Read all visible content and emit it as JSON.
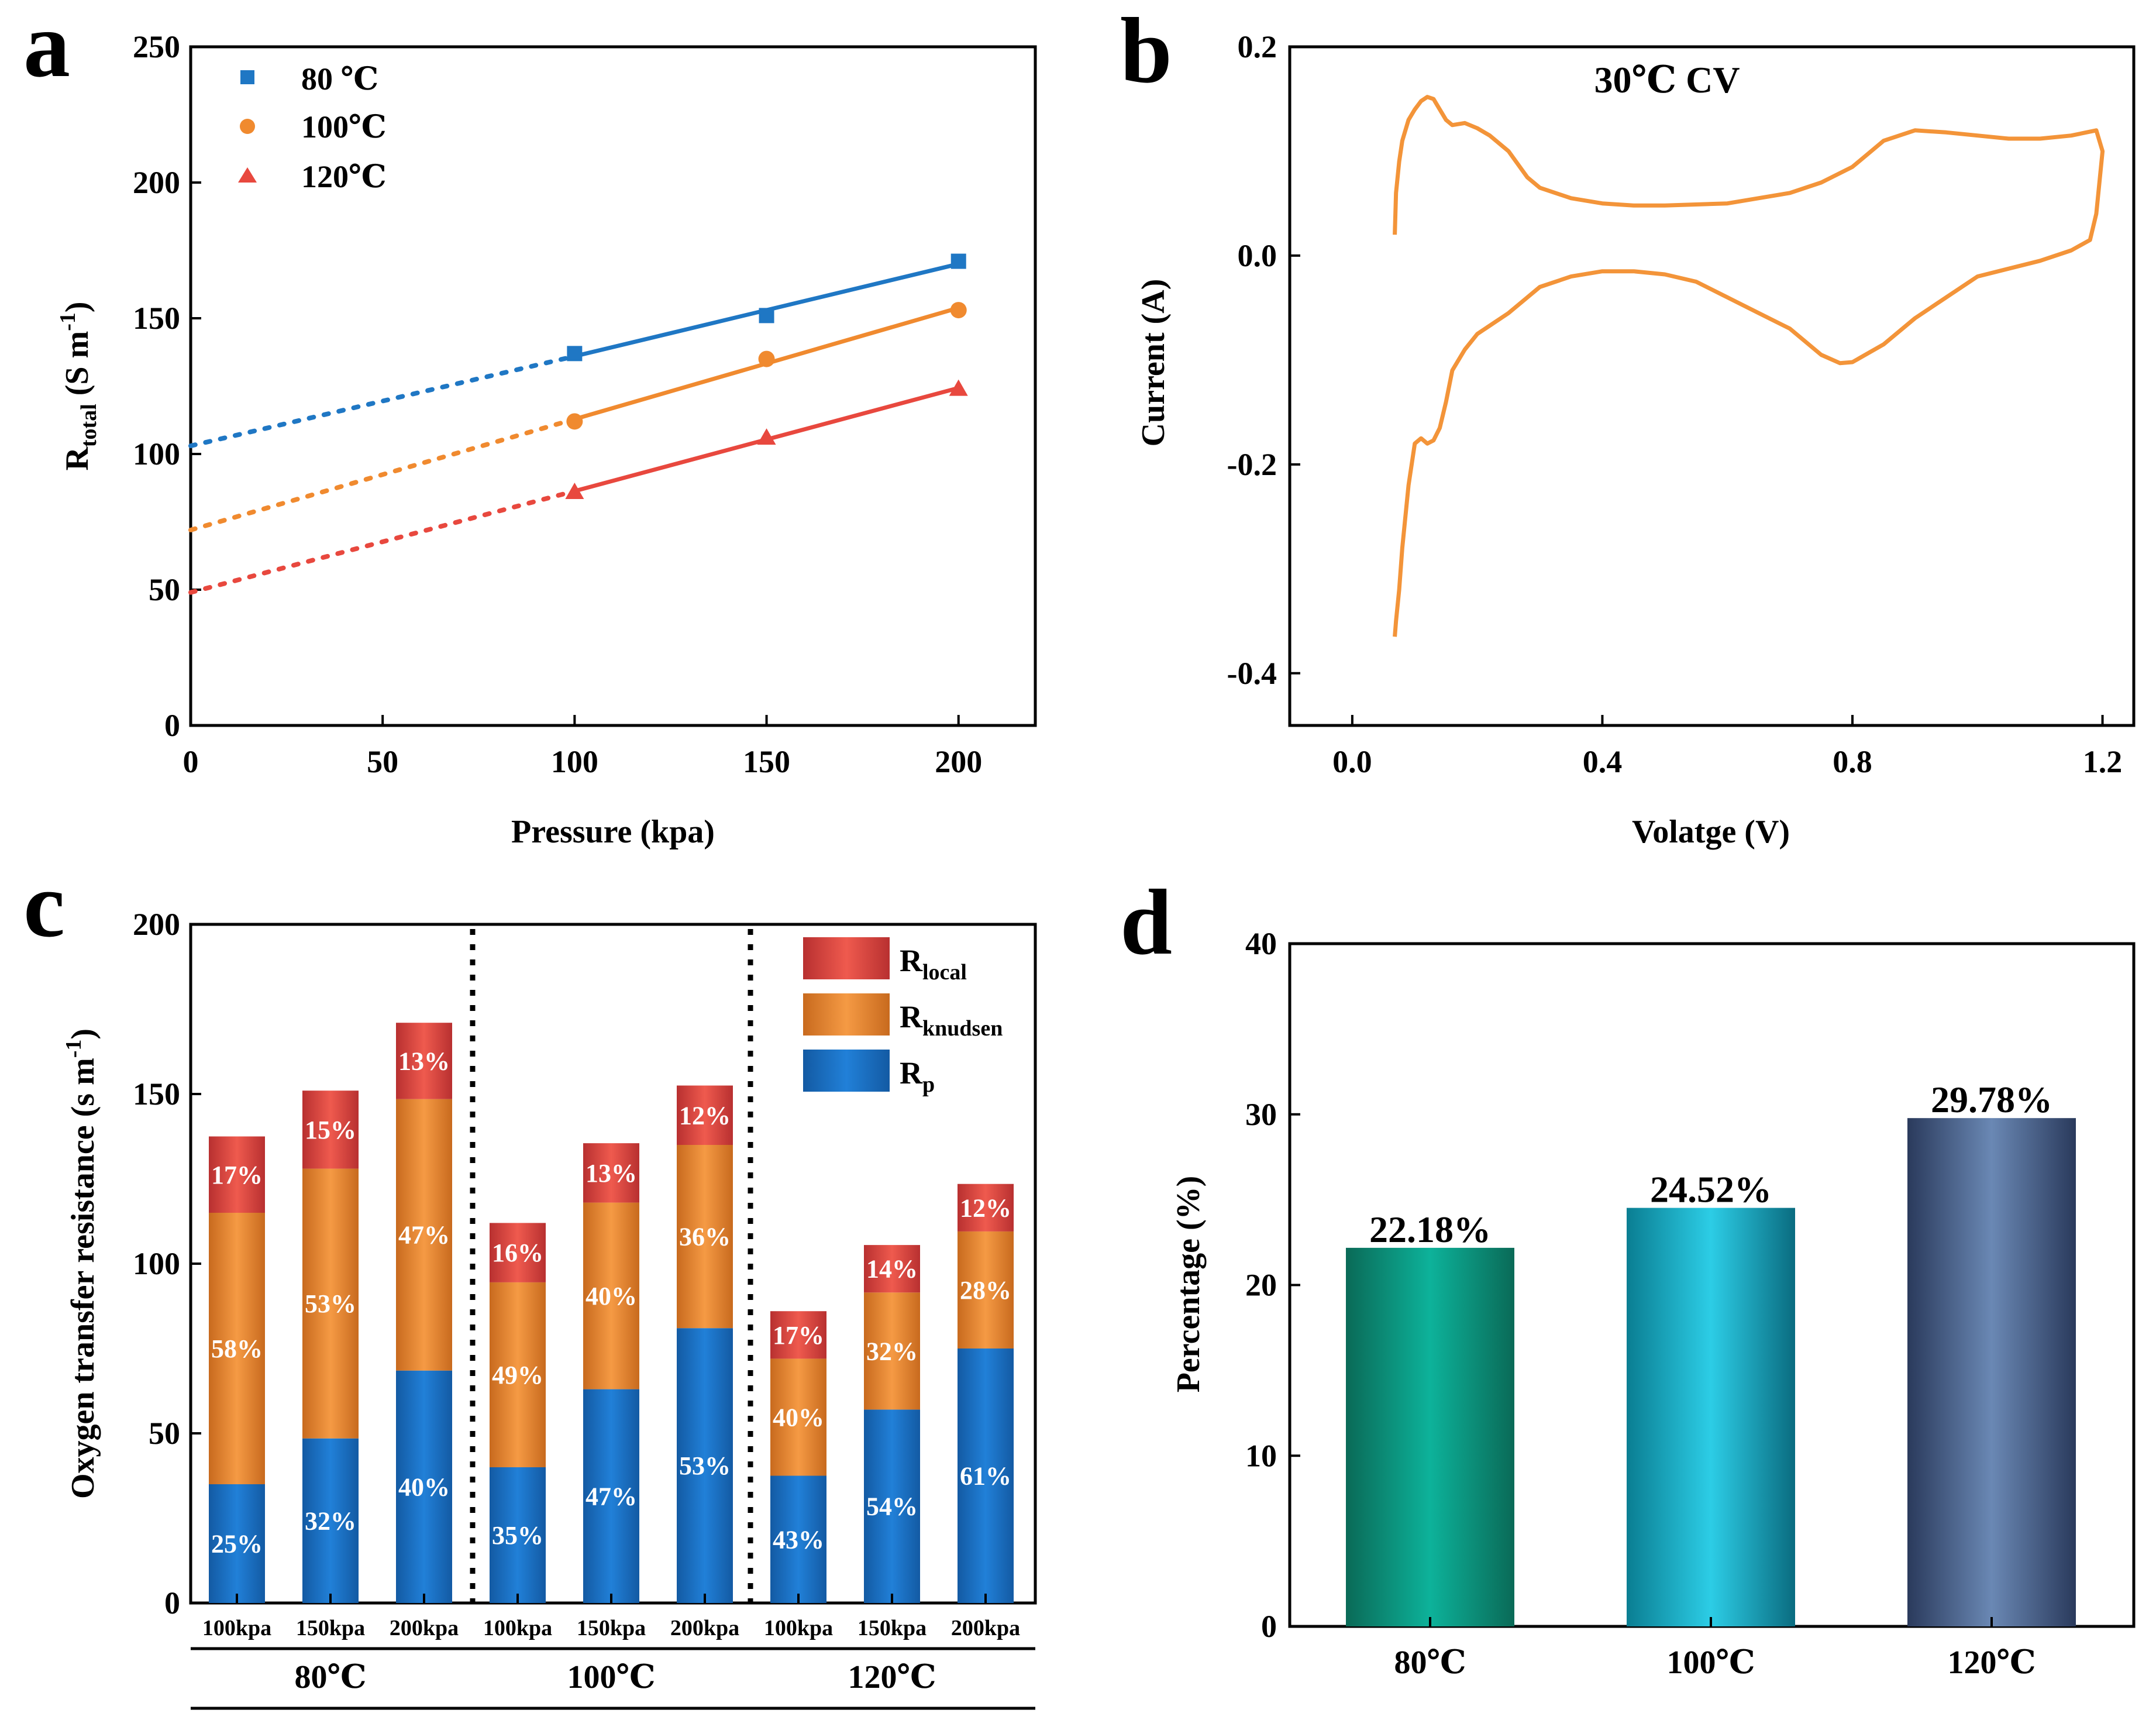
{
  "panels": {
    "a": "a",
    "b": "b",
    "c": "c",
    "d": "d"
  },
  "colors": {
    "c80": "#1f77c4",
    "c100": "#f08a2f",
    "c120": "#e8483e",
    "r_local": "#d93a3a",
    "r_knudsen": "#f08a30",
    "r_p": "#1a6fc2",
    "cv": "#f39439"
  },
  "chart_data": [
    {
      "panel": "a",
      "type": "scatter",
      "xlabel": "Pressure (kpa)",
      "ylabel": {
        "main": "R",
        "sub": "total",
        "unit": " (S m",
        "exp": "-1",
        "close": ")"
      },
      "xlim": [
        0,
        220
      ],
      "ylim": [
        0,
        250
      ],
      "xticks": [
        0,
        50,
        100,
        150,
        200
      ],
      "yticks": [
        0,
        50,
        100,
        150,
        200,
        250
      ],
      "series": [
        {
          "name": "80 ℃",
          "marker": "square",
          "color_key": "c80",
          "x": [
            100,
            150,
            200
          ],
          "y": [
            137,
            151,
            171
          ],
          "intercept": 103
        },
        {
          "name": "100℃",
          "marker": "circle",
          "color_key": "c100",
          "x": [
            100,
            150,
            200
          ],
          "y": [
            112,
            135,
            153
          ],
          "intercept": 72
        },
        {
          "name": "120℃",
          "marker": "triangle",
          "color_key": "c120",
          "x": [
            100,
            150,
            200
          ],
          "y": [
            86,
            106,
            124
          ],
          "intercept": 49
        }
      ]
    },
    {
      "panel": "b",
      "type": "line",
      "title": "30℃ CV",
      "xlabel": "Volatge (V)",
      "ylabel": "Current (A)",
      "xlim": [
        -0.1,
        1.25
      ],
      "ylim": [
        -0.45,
        0.2
      ],
      "xticks": [
        0.0,
        0.4,
        0.8,
        1.2
      ],
      "yticks": [
        -0.4,
        -0.2,
        0.0,
        0.2
      ],
      "x": [
        0.068,
        0.07,
        0.075,
        0.08,
        0.09,
        0.1,
        0.11,
        0.12,
        0.13,
        0.14,
        0.15,
        0.16,
        0.18,
        0.2,
        0.22,
        0.25,
        0.28,
        0.3,
        0.35,
        0.4,
        0.45,
        0.5,
        0.6,
        0.7,
        0.75,
        0.8,
        0.85,
        0.9,
        0.95,
        1.0,
        1.05,
        1.1,
        1.15,
        1.19,
        1.2,
        1.19,
        1.18,
        1.15,
        1.1,
        1.0,
        0.95,
        0.9,
        0.85,
        0.8,
        0.78,
        0.75,
        0.7,
        0.65,
        0.6,
        0.55,
        0.5,
        0.45,
        0.4,
        0.35,
        0.3,
        0.25,
        0.2,
        0.18,
        0.16,
        0.15,
        0.14,
        0.13,
        0.12,
        0.11,
        0.1,
        0.09,
        0.08,
        0.075,
        0.07,
        0.068
      ],
      "y": [
        0.02,
        0.06,
        0.09,
        0.11,
        0.13,
        0.14,
        0.148,
        0.152,
        0.15,
        0.14,
        0.13,
        0.125,
        0.127,
        0.122,
        0.115,
        0.1,
        0.075,
        0.065,
        0.055,
        0.05,
        0.048,
        0.048,
        0.05,
        0.06,
        0.07,
        0.085,
        0.11,
        0.12,
        0.118,
        0.115,
        0.112,
        0.112,
        0.115,
        0.12,
        0.1,
        0.04,
        0.015,
        0.005,
        -0.005,
        -0.02,
        -0.04,
        -0.06,
        -0.085,
        -0.102,
        -0.103,
        -0.095,
        -0.07,
        -0.055,
        -0.04,
        -0.025,
        -0.018,
        -0.015,
        -0.015,
        -0.02,
        -0.03,
        -0.055,
        -0.075,
        -0.09,
        -0.11,
        -0.14,
        -0.165,
        -0.177,
        -0.18,
        -0.175,
        -0.18,
        -0.22,
        -0.28,
        -0.32,
        -0.35,
        -0.365
      ]
    },
    {
      "panel": "c",
      "type": "bar",
      "stacked": true,
      "ylabel": {
        "main": "Oxygen transfer resistance (s m",
        "exp": "-1",
        "close": ")"
      },
      "ylim": [
        0,
        200
      ],
      "yticks": [
        0,
        50,
        100,
        150,
        200
      ],
      "legend": [
        {
          "main": "R",
          "sub": "local",
          "color_key": "r_local"
        },
        {
          "main": "R",
          "sub": "knudsen",
          "color_key": "r_knudsen"
        },
        {
          "main": "R",
          "sub": "p",
          "color_key": "r_p"
        }
      ],
      "groups": [
        "80℃",
        "100℃",
        "120℃"
      ],
      "categories": [
        "100kpa",
        "150kpa",
        "200kpa",
        "100kpa",
        "150kpa",
        "200kpa",
        "100kpa",
        "150kpa",
        "200kpa"
      ],
      "series": [
        {
          "name": "R_p",
          "color_key": "r_p",
          "values": [
            35,
            48.5,
            68.5,
            40,
            63,
            81,
            37.5,
            57,
            75
          ],
          "labels": [
            "25%",
            "32%",
            "40%",
            "35%",
            "47%",
            "53%",
            "43%",
            "54%",
            "61%"
          ]
        },
        {
          "name": "R_knudsen",
          "color_key": "r_knudsen",
          "values": [
            80,
            79.5,
            80,
            54.5,
            55,
            54,
            34.5,
            34.5,
            34.5
          ],
          "labels": [
            "58%",
            "53%",
            "47%",
            "49%",
            "40%",
            "36%",
            "40%",
            "32%",
            "28%"
          ]
        },
        {
          "name": "R_local",
          "color_key": "r_local",
          "values": [
            22.5,
            23,
            22.5,
            17.5,
            17.5,
            17.5,
            14,
            14,
            14
          ],
          "labels": [
            "17%",
            "15%",
            "13%",
            "16%",
            "13%",
            "12%",
            "17%",
            "14%",
            "12%"
          ]
        }
      ]
    },
    {
      "panel": "d",
      "type": "bar",
      "ylabel": "Percentage (%)",
      "ylim": [
        0,
        40
      ],
      "yticks": [
        0,
        10,
        20,
        30,
        40
      ],
      "categories": [
        "80℃",
        "100℃",
        "120℃"
      ],
      "values": [
        22.18,
        24.52,
        29.78
      ],
      "labels": [
        "22.18%",
        "24.52%",
        "29.78%"
      ]
    }
  ]
}
